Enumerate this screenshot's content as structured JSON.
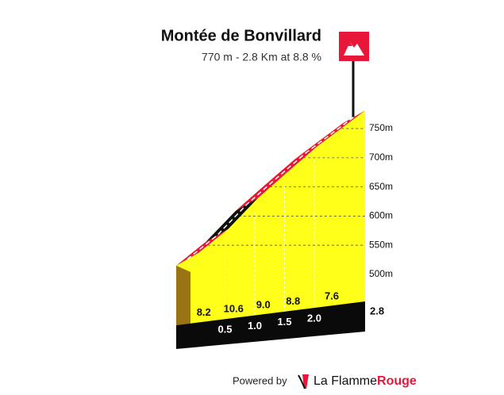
{
  "chart_data": {
    "type": "climb-profile",
    "title": "Montée de Bonvillard",
    "subtitle": "770 m - 2.8 Km at 8.8 %",
    "elevation": {
      "x": [
        0,
        0.5,
        1,
        1.5,
        2,
        2.8
      ],
      "values": [
        526,
        567,
        620,
        665,
        709,
        770
      ]
    },
    "gradient": {
      "values": [
        8.2,
        10.6,
        9,
        8.8,
        7.6
      ],
      "value_labels": [
        "8.2",
        "10.6",
        "9.0",
        "8.8",
        "7.6"
      ],
      "colors": [
        "#e8173a",
        "#111111",
        "#e8173a",
        "#e8173a",
        "#e8173a"
      ]
    },
    "xlim": [
      0,
      2.8
    ],
    "xticks": [
      0.5,
      {
        "value": 1,
        "label": "1.0"
      },
      1.5,
      {
        "value": 2,
        "label": "2.0"
      },
      2.8
    ],
    "ylim": [
      460,
      780
    ],
    "yticks": [
      {
        "value": 500,
        "label": "500m"
      },
      {
        "value": 550,
        "label": "550m"
      },
      {
        "value": 600,
        "label": "600m"
      },
      {
        "value": 650,
        "label": "650m"
      },
      {
        "value": 700,
        "label": "700m"
      },
      {
        "value": 750,
        "label": "750m"
      }
    ],
    "fill_color": "#ffff1a",
    "side_color": "#9a7414",
    "base_color": "#0a0a0a"
  },
  "footer": {
    "powered_by": "Powered by",
    "brand_left": "La Flamme",
    "brand_right": "Rouge"
  }
}
